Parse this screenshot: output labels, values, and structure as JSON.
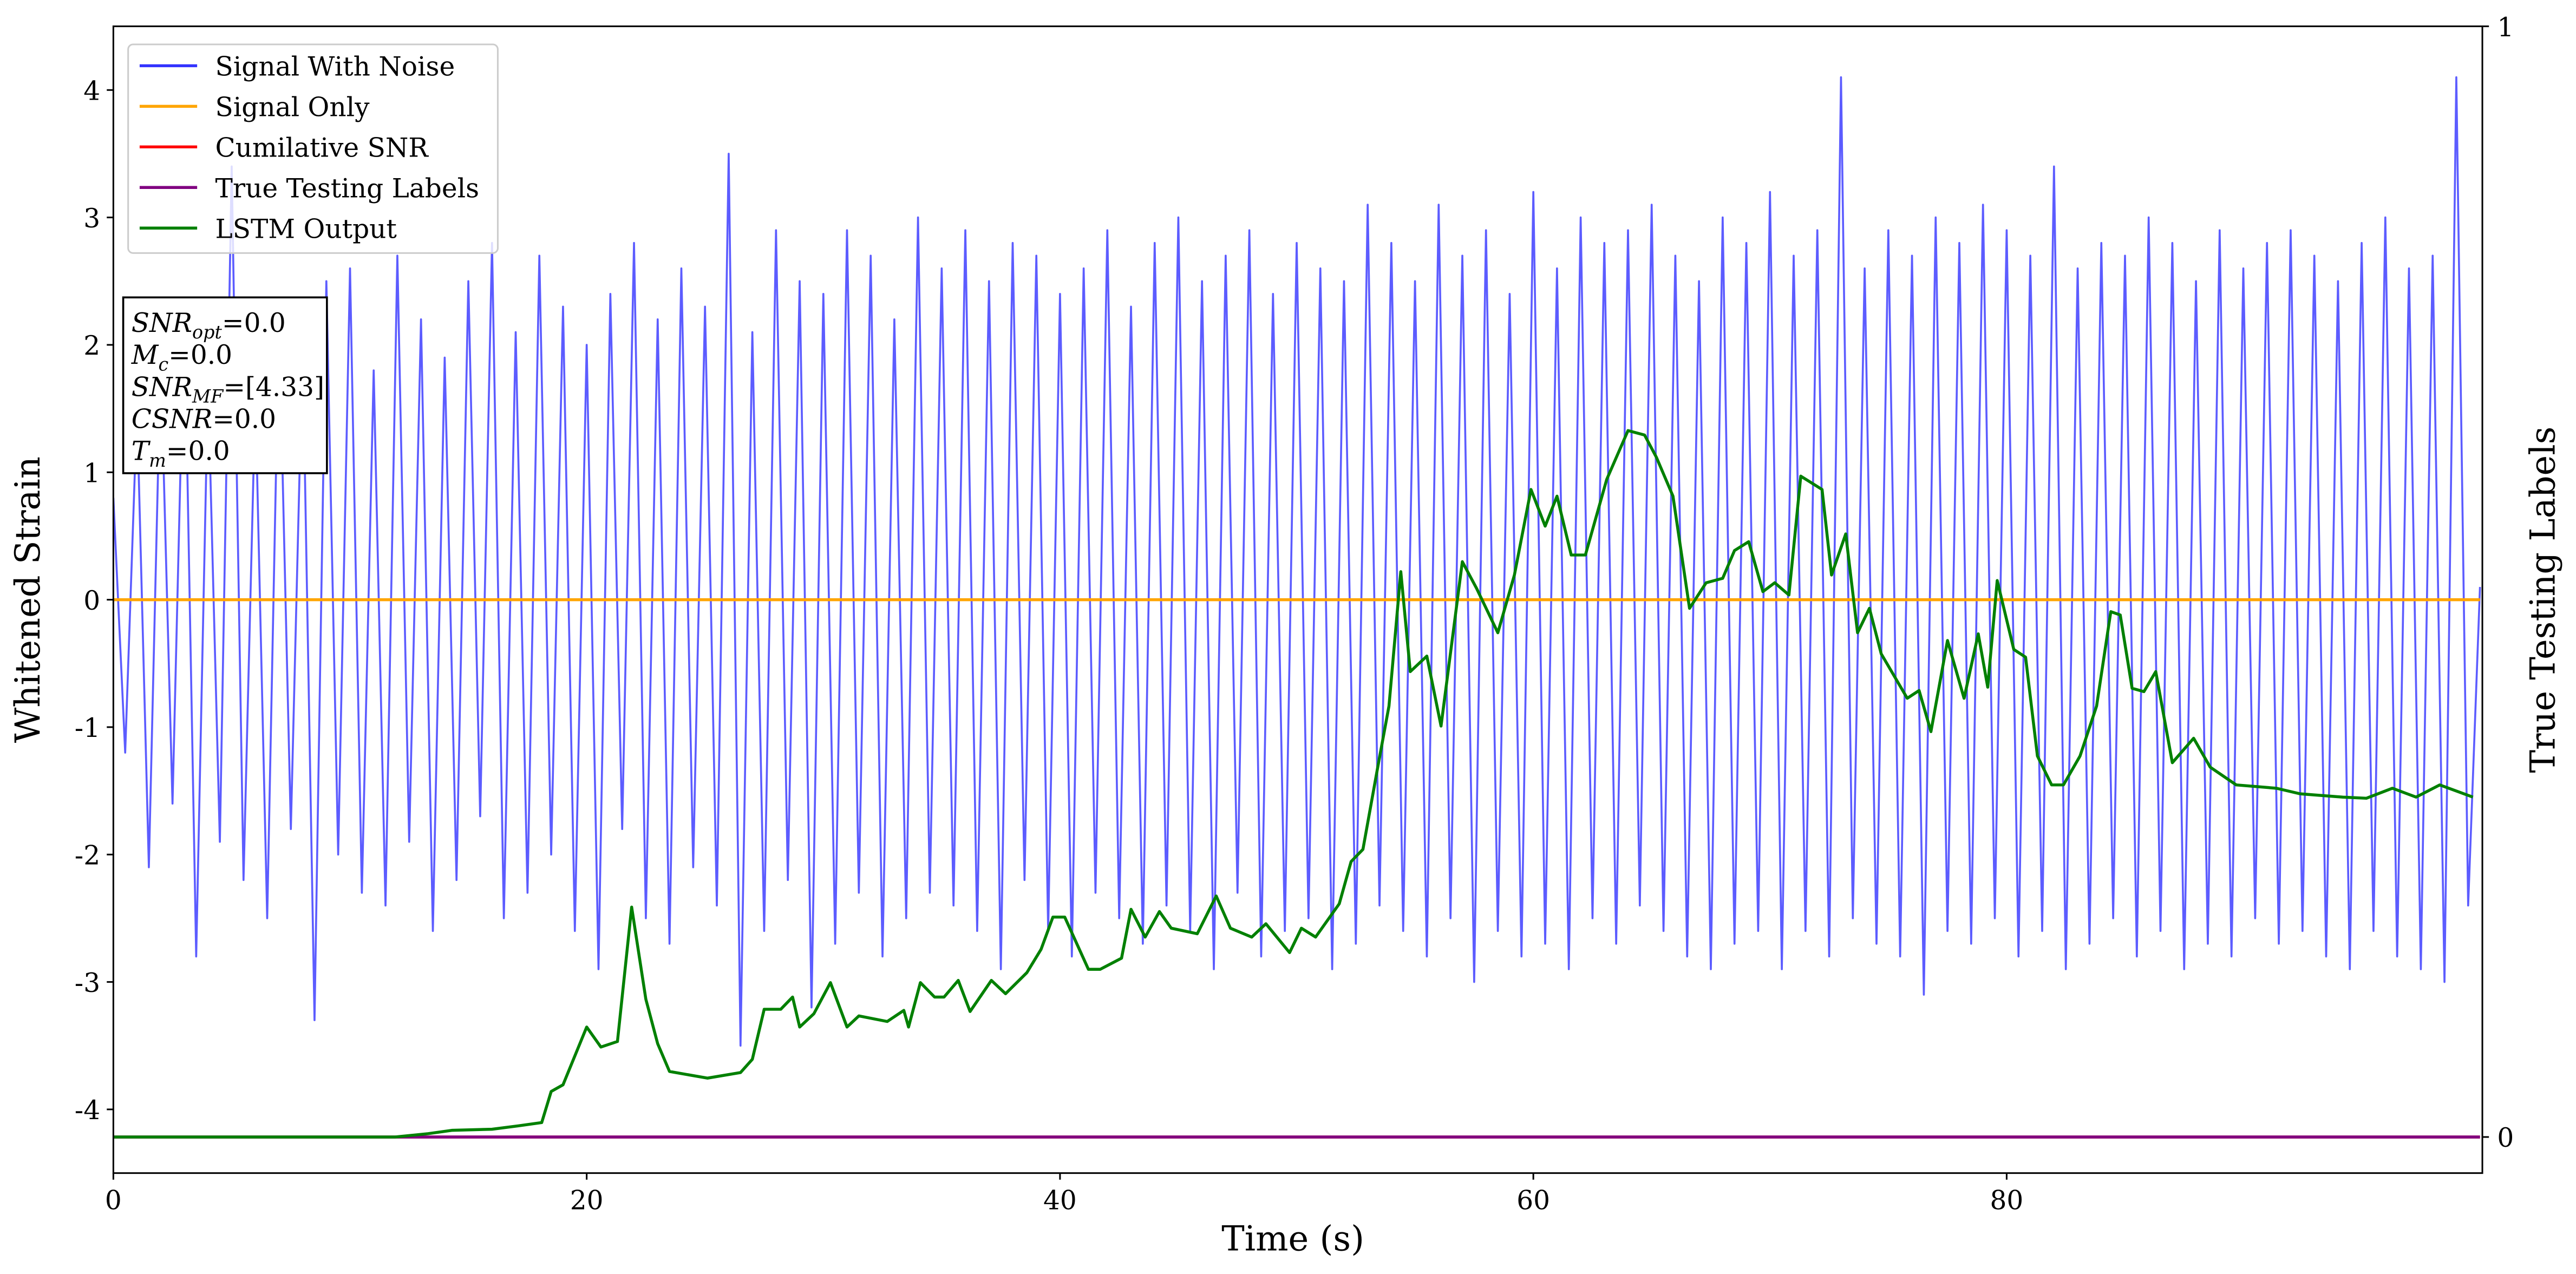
{
  "chart_data": {
    "type": "line",
    "xlabel": "Time (s)",
    "ylabel": "Whitened Strain",
    "y2label": "True Testing Labels",
    "xlim": [
      0,
      100.1
    ],
    "ylim": [
      -4.5,
      4.5
    ],
    "y2lim": [
      -0.0325,
      1
    ],
    "xticks": [
      0,
      20,
      40,
      60,
      80
    ],
    "yticks": [
      -4,
      -3,
      -2,
      -1,
      0,
      1,
      2,
      3,
      4
    ],
    "y2ticks": [
      0,
      1
    ],
    "legend": "upper left",
    "annotation": [
      {
        "symbol": "SNR",
        "subscript": "opt",
        "text": "=0.0"
      },
      {
        "symbol": "M",
        "subscript": "c",
        "text": "=0.0"
      },
      {
        "symbol": "SNR",
        "subscript": "MF",
        "text": "=[4.33]"
      },
      {
        "symbol": "CSNR",
        "subscript": "",
        "text": "=0.0"
      },
      {
        "symbol": "T",
        "subscript": "m",
        "text": "=0.0"
      }
    ],
    "series": [
      {
        "name": "Signal With Noise",
        "color": "#3333ff",
        "axis": "y",
        "x": [
          0,
          0.5,
          1,
          1.5,
          2,
          2.5,
          3,
          3.5,
          4,
          4.5,
          5,
          5.5,
          6,
          6.5,
          7,
          7.5,
          8,
          8.5,
          9,
          9.5,
          10,
          10.5,
          11,
          11.5,
          12,
          12.5,
          13,
          13.5,
          14,
          14.5,
          15,
          15.5,
          16,
          16.5,
          17,
          17.5,
          18,
          18.5,
          19,
          19.5,
          20,
          20.5,
          21,
          21.5,
          22,
          22.5,
          23,
          23.5,
          24,
          24.5,
          25,
          25.5,
          26,
          26.5,
          27,
          27.5,
          28,
          28.5,
          29,
          29.5,
          30,
          30.5,
          31,
          31.5,
          32,
          32.5,
          33,
          33.5,
          34,
          34.5,
          35,
          35.5,
          36,
          36.5,
          37,
          37.5,
          38,
          38.5,
          39,
          39.5,
          40,
          40.5,
          41,
          41.5,
          42,
          42.5,
          43,
          43.5,
          44,
          44.5,
          45,
          45.5,
          46,
          46.5,
          47,
          47.5,
          48,
          48.5,
          49,
          49.5,
          50,
          50.5,
          51,
          51.5,
          52,
          52.5,
          53,
          53.5,
          54,
          54.5,
          55,
          55.5,
          56,
          56.5,
          57,
          57.5,
          58,
          58.5,
          59,
          59.5,
          60,
          60.5,
          61,
          61.5,
          62,
          62.5,
          63,
          63.5,
          64,
          64.5,
          65,
          65.5,
          66,
          66.5,
          67,
          67.5,
          68,
          68.5,
          69,
          69.5,
          70,
          70.5,
          71,
          71.5,
          72,
          72.5,
          73,
          73.5,
          74,
          74.5,
          75,
          75.5,
          76,
          76.5,
          77,
          77.5,
          78,
          78.5,
          79,
          79.5,
          80,
          80.5,
          81,
          81.5,
          82,
          82.5,
          83,
          83.5,
          84,
          84.5,
          85,
          85.5,
          86,
          86.5,
          87,
          87.5,
          88,
          88.5,
          89,
          89.5,
          90,
          90.5,
          91,
          91.5,
          92,
          92.5,
          93,
          93.5,
          94,
          94.5,
          95,
          95.5,
          96,
          96.5,
          97,
          97.5,
          98,
          98.5,
          99,
          99.5,
          100
        ],
        "values": [
          0.8,
          -1.2,
          1.5,
          -2.1,
          1.9,
          -1.6,
          2.3,
          -2.8,
          1.7,
          -1.9,
          3.4,
          -2.2,
          1.6,
          -2.5,
          2.2,
          -1.8,
          2.0,
          -3.3,
          2.5,
          -2.0,
          2.6,
          -2.3,
          1.8,
          -2.4,
          2.7,
          -1.9,
          2.2,
          -2.6,
          1.9,
          -2.2,
          2.5,
          -1.7,
          2.8,
          -2.5,
          2.1,
          -2.3,
          2.7,
          -2.0,
          2.3,
          -2.6,
          2.0,
          -2.9,
          2.4,
          -1.8,
          2.8,
          -2.5,
          2.2,
          -2.7,
          2.6,
          -2.1,
          2.3,
          -2.4,
          3.5,
          -3.5,
          2.1,
          -2.6,
          2.9,
          -2.2,
          2.5,
          -3.2,
          2.4,
          -2.7,
          2.9,
          -2.3,
          2.7,
          -2.8,
          2.2,
          -2.5,
          3.0,
          -2.3,
          2.6,
          -2.4,
          2.9,
          -2.6,
          2.5,
          -2.9,
          2.8,
          -2.2,
          2.7,
          -2.6,
          2.4,
          -2.8,
          2.6,
          -2.3,
          2.9,
          -2.5,
          2.3,
          -2.7,
          2.8,
          -2.4,
          3.0,
          -2.6,
          2.5,
          -2.9,
          2.7,
          -2.3,
          2.9,
          -2.8,
          2.4,
          -2.6,
          2.8,
          -2.5,
          2.6,
          -2.9,
          2.5,
          -2.7,
          3.1,
          -2.4,
          2.8,
          -2.6,
          2.5,
          -2.8,
          3.1,
          -2.5,
          2.7,
          -3.0,
          2.9,
          -2.6,
          2.4,
          -2.8,
          3.2,
          -2.7,
          2.6,
          -2.9,
          3.0,
          -2.5,
          2.8,
          -2.7,
          2.9,
          -2.4,
          3.1,
          -2.6,
          2.7,
          -2.8,
          2.5,
          -2.9,
          3.0,
          -2.7,
          2.8,
          -2.6,
          3.2,
          -2.9,
          2.7,
          -2.6,
          2.9,
          -2.8,
          4.1,
          -2.5,
          2.6,
          -2.7,
          2.9,
          -2.8,
          2.7,
          -3.1,
          3.0,
          -2.6,
          2.8,
          -2.7,
          3.1,
          -2.5,
          2.9,
          -2.8,
          2.7,
          -2.6,
          3.4,
          -2.9,
          2.6,
          -2.7,
          2.8,
          -2.5,
          2.7,
          -2.8,
          3.0,
          -2.6,
          2.8,
          -2.9,
          2.5,
          -2.7,
          2.9,
          -2.8,
          2.6,
          -2.5,
          2.8,
          -2.7,
          2.9,
          -2.6,
          2.7,
          -2.8,
          2.5,
          -2.9,
          2.8,
          -2.6,
          3.0,
          -2.8,
          2.6,
          -2.9,
          2.7,
          -3.0,
          4.1,
          -2.4,
          0.1
        ]
      },
      {
        "name": "Signal Only",
        "color": "orange",
        "axis": "y",
        "x": [
          0,
          100
        ],
        "values": [
          0,
          0
        ]
      },
      {
        "name": "Cumilative SNR",
        "color": "red",
        "axis": "y2",
        "x": [
          0,
          100
        ],
        "values": [
          0,
          0
        ]
      },
      {
        "name": "True Testing Labels",
        "color": "purple",
        "axis": "y2",
        "x": [
          0,
          100
        ],
        "values": [
          0,
          0
        ]
      },
      {
        "name": "LSTM Output",
        "color": "green",
        "axis": "y2",
        "x": [
          0,
          11.9,
          13.3,
          14.3,
          16.0,
          17.1,
          18.1,
          18.5,
          19.0,
          20.0,
          20.6,
          21.3,
          21.9,
          22.5,
          23.0,
          23.5,
          25.1,
          26.5,
          27.0,
          27.5,
          28.2,
          28.7,
          29.0,
          29.6,
          30.3,
          31.0,
          31.5,
          32.7,
          33.4,
          33.6,
          34.1,
          34.7,
          35.1,
          35.7,
          36.2,
          37.1,
          37.7,
          38.6,
          39.2,
          39.7,
          40.2,
          41.2,
          41.7,
          42.6,
          43.0,
          43.6,
          44.2,
          44.7,
          45.8,
          46.6,
          47.2,
          48.1,
          48.7,
          49.7,
          50.2,
          50.8,
          51.8,
          52.3,
          52.8,
          53.4,
          53.9,
          54.4,
          54.8,
          55.5,
          56.1,
          57.0,
          57.6,
          58.5,
          59.2,
          59.9,
          60.5,
          61.0,
          61.6,
          62.2,
          63.1,
          64.0,
          64.7,
          65.2,
          65.9,
          66.6,
          67.3,
          68.0,
          68.5,
          69.1,
          69.7,
          70.2,
          70.8,
          71.3,
          72.2,
          72.6,
          73.2,
          73.7,
          74.2,
          74.7,
          75.8,
          76.3,
          76.8,
          77.5,
          78.2,
          78.8,
          79.2,
          79.6,
          80.3,
          80.8,
          81.3,
          81.9,
          82.4,
          83.1,
          83.8,
          84.4,
          84.8,
          85.3,
          85.8,
          86.3,
          87.0,
          87.9,
          88.6,
          89.7,
          91.4,
          92.4,
          94.2,
          95.2,
          96.3,
          97.3,
          98.3,
          99.7
        ],
        "values": [
          0,
          0,
          0.003,
          0.006,
          0.007,
          0.01,
          0.013,
          0.041,
          0.047,
          0.099,
          0.081,
          0.086,
          0.207,
          0.124,
          0.084,
          0.059,
          0.053,
          0.058,
          0.07,
          0.115,
          0.115,
          0.126,
          0.099,
          0.111,
          0.139,
          0.099,
          0.109,
          0.104,
          0.114,
          0.099,
          0.139,
          0.126,
          0.126,
          0.141,
          0.113,
          0.141,
          0.129,
          0.148,
          0.169,
          0.198,
          0.198,
          0.151,
          0.151,
          0.161,
          0.205,
          0.18,
          0.203,
          0.188,
          0.183,
          0.217,
          0.188,
          0.18,
          0.192,
          0.166,
          0.188,
          0.18,
          0.21,
          0.248,
          0.259,
          0.33,
          0.388,
          0.509,
          0.419,
          0.433,
          0.37,
          0.518,
          0.494,
          0.454,
          0.506,
          0.583,
          0.55,
          0.577,
          0.524,
          0.524,
          0.592,
          0.636,
          0.632,
          0.612,
          0.577,
          0.476,
          0.499,
          0.503,
          0.528,
          0.536,
          0.491,
          0.499,
          0.488,
          0.595,
          0.583,
          0.506,
          0.543,
          0.454,
          0.476,
          0.435,
          0.395,
          0.402,
          0.365,
          0.447,
          0.395,
          0.453,
          0.405,
          0.501,
          0.439,
          0.432,
          0.343,
          0.317,
          0.317,
          0.343,
          0.388,
          0.473,
          0.47,
          0.404,
          0.401,
          0.419,
          0.337,
          0.359,
          0.333,
          0.317,
          0.314,
          0.309,
          0.306,
          0.305,
          0.314,
          0.306,
          0.317,
          0.306
        ]
      }
    ]
  }
}
